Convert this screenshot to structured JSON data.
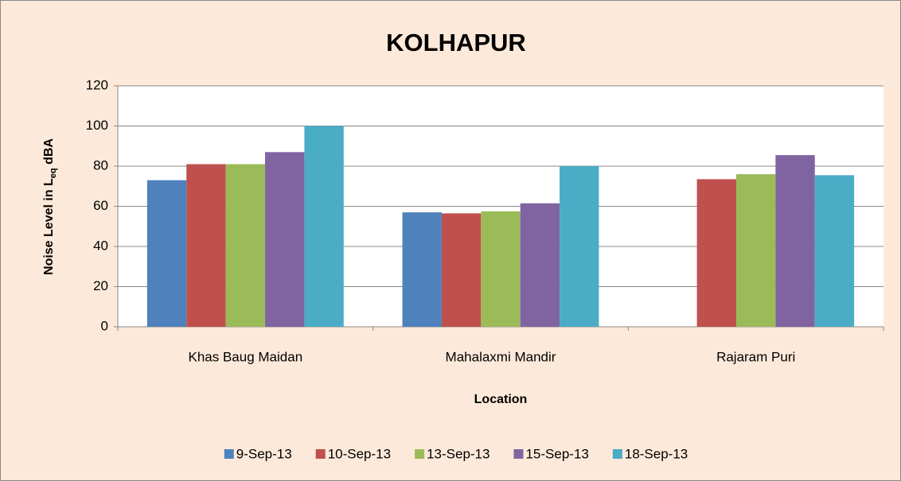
{
  "chart_data": {
    "type": "bar",
    "title": "KOLHAPUR",
    "x_label": "Location",
    "y_label": [
      "Noise Level in L",
      "eq",
      " dBA"
    ],
    "categories": [
      "Khas Baug Maidan",
      "Mahalaxmi Mandir",
      "Rajaram Puri"
    ],
    "series": [
      {
        "name": "9-Sep-13",
        "color": "#4f81bd",
        "values": [
          73,
          57,
          null
        ]
      },
      {
        "name": "10-Sep-13",
        "color": "#c0504d",
        "values": [
          81,
          56.5,
          73.5
        ]
      },
      {
        "name": "13-Sep-13",
        "color": "#9bbb59",
        "values": [
          81,
          57.5,
          76
        ]
      },
      {
        "name": "15-Sep-13",
        "color": "#8064a2",
        "values": [
          87,
          61.5,
          85.5
        ]
      },
      {
        "name": "18-Sep-13",
        "color": "#4bacc6",
        "values": [
          100,
          80,
          75.5
        ]
      }
    ],
    "ylim": [
      0,
      120
    ],
    "yticks": [
      0,
      20,
      40,
      60,
      80,
      100,
      120
    ],
    "grid": true,
    "legend": "bottom"
  }
}
